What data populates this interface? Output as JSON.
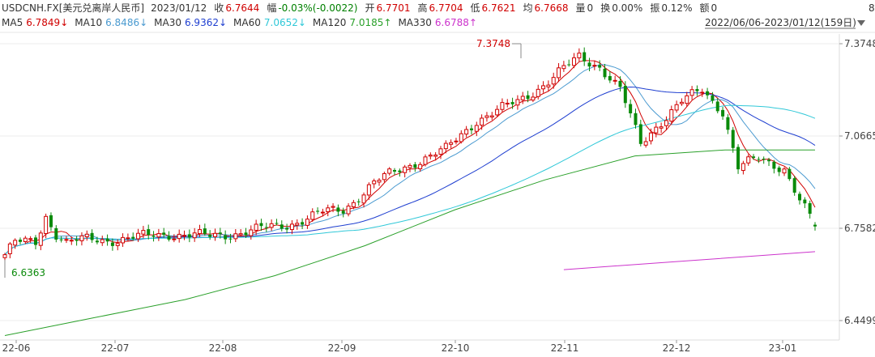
{
  "header": {
    "symbol": "USDCNH.FX[美元兑离岸人民币]",
    "date": "2023/01/12",
    "fields": [
      {
        "label": "收",
        "value": "6.7644",
        "color": "#d00000"
      },
      {
        "label": "幅",
        "value": "-0.03%(-0.0022)",
        "color": "#008000"
      },
      {
        "label": "开",
        "value": "6.7701",
        "color": "#d00000"
      },
      {
        "label": "高",
        "value": "6.7704",
        "color": "#d00000"
      },
      {
        "label": "低",
        "value": "6.7621",
        "color": "#d00000"
      },
      {
        "label": "均",
        "value": "6.7668",
        "color": "#d00000"
      },
      {
        "label": "量",
        "value": "0",
        "color": "#333333"
      },
      {
        "label": "换",
        "value": "0.00%",
        "color": "#333333"
      },
      {
        "label": "振",
        "value": "0.12%",
        "color": "#333333"
      },
      {
        "label": "额",
        "value": "0",
        "color": "#333333"
      }
    ],
    "edge_char": "8",
    "ma": [
      {
        "name": "MA5",
        "value": "6.7849↓",
        "color": "#d00000"
      },
      {
        "name": "MA10",
        "value": "6.8486↓",
        "color": "#4a9ad0"
      },
      {
        "name": "MA30",
        "value": "6.9362↓",
        "color": "#1f3fd0"
      },
      {
        "name": "MA60",
        "value": "7.0652↓",
        "color": "#30c8d8"
      },
      {
        "name": "MA120",
        "value": "7.0185↑",
        "color": "#2aa02a"
      },
      {
        "name": "MA330",
        "value": "6.6788↑",
        "color": "#cc33cc"
      }
    ],
    "range_dropdown": "2022/06/06-2023/01/12(159日)"
  },
  "chart_data": {
    "type": "candlestick",
    "title": "",
    "ylim": [
      6.4,
      7.42
    ],
    "yticks": [
      "7.3748",
      "7.0665",
      "6.7582",
      "6.4499"
    ],
    "xticks": [
      "22-06",
      "22-07",
      "22-08",
      "22-09",
      "22-10",
      "22-11",
      "22-12",
      "23-01"
    ],
    "annotations": {
      "max": "7.3748",
      "min": "6.6363"
    },
    "grid": true,
    "colors": {
      "up": "#d00000",
      "down": "#0a8a0a"
    },
    "ma_anchor_values": {
      "MA5": [
        6.66,
        6.72,
        6.7,
        6.76,
        6.88,
        7.0,
        7.22,
        7.34,
        7.2,
        7.18,
        7.05,
        6.85,
        6.84,
        6.77
      ],
      "MA10": [
        6.65,
        6.7,
        6.69,
        6.73,
        6.83,
        6.95,
        7.15,
        7.3,
        7.22,
        7.18,
        7.1,
        6.88,
        6.86,
        6.8
      ],
      "MA30": [
        6.69,
        6.72,
        6.72,
        6.7,
        6.78,
        6.86,
        7.0,
        7.15,
        7.22,
        7.14,
        7.1,
        7.02,
        6.9
      ],
      "MA60": [
        6.56,
        6.63,
        6.68,
        6.72,
        6.8,
        6.9,
        7.02,
        7.12,
        7.14,
        7.1,
        7.06
      ],
      "MA120": [
        6.4,
        6.46,
        6.52,
        6.6,
        6.7,
        6.82,
        6.92,
        7.0,
        7.02,
        7.02
      ],
      "MA330": [
        6.62,
        6.65,
        6.68
      ]
    }
  }
}
